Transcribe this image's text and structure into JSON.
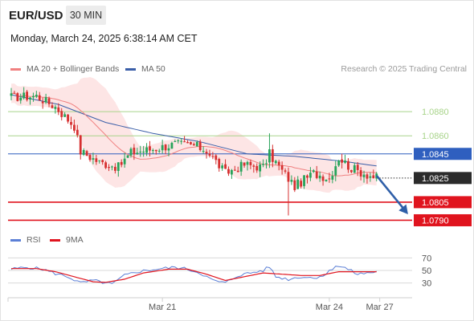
{
  "header": {
    "symbol": "EUR/USD",
    "timeframe": "30 MIN",
    "datetime": "Monday, March 24, 2025 6:38:14 AM CET",
    "copyright": "Research © 2025 Trading Central"
  },
  "colors": {
    "ma20": "#f08080",
    "band_fill": "#fde1e1",
    "ma50": "#3a5ea8",
    "resistance": "#a8d48a",
    "support": "#e0141e",
    "pivot": "#2f5fbf",
    "last_price": "#2b2b2b",
    "arrow": "#2f5fa8",
    "candle_up": "#27a35a",
    "candle_down": "#d63030",
    "rsi": "#5b7fd6",
    "rsi_ma": "#e0141e"
  },
  "chart_data": [
    {
      "type": "candlestick",
      "legend": [
        {
          "name": "MA 20 + Bollinger Bands",
          "color": "#f08080"
        },
        {
          "name": "MA 50",
          "color": "#3a5ea8"
        }
      ],
      "levels": [
        {
          "value": 1.088,
          "label": "1.0880",
          "kind": "resistance"
        },
        {
          "value": 1.086,
          "label": "1.0860",
          "kind": "resistance"
        },
        {
          "value": 1.0845,
          "label": "1.0845",
          "kind": "pivot"
        },
        {
          "value": 1.0825,
          "label": "1.0825",
          "kind": "last"
        },
        {
          "value": 1.0805,
          "label": "1.0805",
          "kind": "support"
        },
        {
          "value": 1.079,
          "label": "1.0790",
          "kind": "support"
        }
      ],
      "x_ticks": [
        {
          "index": 48,
          "label": "Mar 21"
        },
        {
          "index": 101,
          "label": "Mar 24"
        },
        {
          "index": 117,
          "label": "Mar 27"
        }
      ],
      "y_range": [
        1.0785,
        1.0906
      ],
      "anchors": [
        {
          "i": 0,
          "p": 1.0892
        },
        {
          "i": 8,
          "p": 1.0893
        },
        {
          "i": 14,
          "p": 1.0884
        },
        {
          "i": 20,
          "p": 1.0868
        },
        {
          "i": 22,
          "p": 1.0847
        },
        {
          "i": 28,
          "p": 1.0838
        },
        {
          "i": 34,
          "p": 1.0834
        },
        {
          "i": 38,
          "p": 1.0846
        },
        {
          "i": 45,
          "p": 1.0849
        },
        {
          "i": 52,
          "p": 1.0853
        },
        {
          "i": 58,
          "p": 1.0852
        },
        {
          "i": 62,
          "p": 1.0848
        },
        {
          "i": 68,
          "p": 1.0829
        },
        {
          "i": 74,
          "p": 1.0836
        },
        {
          "i": 80,
          "p": 1.0834
        },
        {
          "i": 82,
          "p": 1.0845
        },
        {
          "i": 86,
          "p": 1.0831
        },
        {
          "i": 90,
          "p": 1.0818
        },
        {
          "i": 96,
          "p": 1.0829
        },
        {
          "i": 101,
          "p": 1.0825
        },
        {
          "i": 104,
          "p": 1.0842
        },
        {
          "i": 108,
          "p": 1.0833
        },
        {
          "i": 113,
          "p": 1.0828
        },
        {
          "i": 116,
          "p": 1.0825
        }
      ],
      "ma50_anchors": [
        {
          "i": 0,
          "p": 1.0894
        },
        {
          "i": 15,
          "p": 1.0886
        },
        {
          "i": 30,
          "p": 1.0871
        },
        {
          "i": 45,
          "p": 1.0862
        },
        {
          "i": 60,
          "p": 1.0855
        },
        {
          "i": 75,
          "p": 1.0845
        },
        {
          "i": 90,
          "p": 1.0843
        },
        {
          "i": 105,
          "p": 1.0839
        },
        {
          "i": 116,
          "p": 1.0835
        }
      ],
      "forecast": {
        "from": {
          "i": 116,
          "p": 1.0827
        },
        "to": {
          "i": 126,
          "p": 1.0795
        }
      }
    },
    {
      "type": "line",
      "legend": [
        {
          "name": "RSI",
          "color": "#5b7fd6"
        },
        {
          "name": "9MA",
          "color": "#e0141e"
        }
      ],
      "y_ticks": [
        70,
        50,
        30
      ],
      "y_range": [
        18,
        82
      ],
      "rsi_anchors": [
        {
          "i": 0,
          "v": 52
        },
        {
          "i": 5,
          "v": 55
        },
        {
          "i": 10,
          "v": 52
        },
        {
          "i": 14,
          "v": 45
        },
        {
          "i": 18,
          "v": 40
        },
        {
          "i": 22,
          "v": 30
        },
        {
          "i": 26,
          "v": 34
        },
        {
          "i": 32,
          "v": 28
        },
        {
          "i": 36,
          "v": 42
        },
        {
          "i": 40,
          "v": 48
        },
        {
          "i": 46,
          "v": 52
        },
        {
          "i": 52,
          "v": 55
        },
        {
          "i": 56,
          "v": 52
        },
        {
          "i": 60,
          "v": 46
        },
        {
          "i": 64,
          "v": 34
        },
        {
          "i": 68,
          "v": 30
        },
        {
          "i": 72,
          "v": 42
        },
        {
          "i": 76,
          "v": 46
        },
        {
          "i": 80,
          "v": 50
        },
        {
          "i": 82,
          "v": 56
        },
        {
          "i": 84,
          "v": 40
        },
        {
          "i": 88,
          "v": 36
        },
        {
          "i": 92,
          "v": 40
        },
        {
          "i": 96,
          "v": 38
        },
        {
          "i": 100,
          "v": 44
        },
        {
          "i": 103,
          "v": 58
        },
        {
          "i": 106,
          "v": 54
        },
        {
          "i": 110,
          "v": 44
        },
        {
          "i": 113,
          "v": 46
        },
        {
          "i": 116,
          "v": 48
        }
      ],
      "ma_anchors": [
        {
          "i": 0,
          "v": 53
        },
        {
          "i": 8,
          "v": 53
        },
        {
          "i": 14,
          "v": 48
        },
        {
          "i": 20,
          "v": 40
        },
        {
          "i": 26,
          "v": 32
        },
        {
          "i": 30,
          "v": 31
        },
        {
          "i": 36,
          "v": 36
        },
        {
          "i": 42,
          "v": 46
        },
        {
          "i": 50,
          "v": 52
        },
        {
          "i": 56,
          "v": 52
        },
        {
          "i": 62,
          "v": 44
        },
        {
          "i": 68,
          "v": 34
        },
        {
          "i": 74,
          "v": 40
        },
        {
          "i": 80,
          "v": 46
        },
        {
          "i": 86,
          "v": 44
        },
        {
          "i": 92,
          "v": 42
        },
        {
          "i": 98,
          "v": 42
        },
        {
          "i": 104,
          "v": 48
        },
        {
          "i": 110,
          "v": 48
        },
        {
          "i": 116,
          "v": 48
        }
      ]
    }
  ]
}
